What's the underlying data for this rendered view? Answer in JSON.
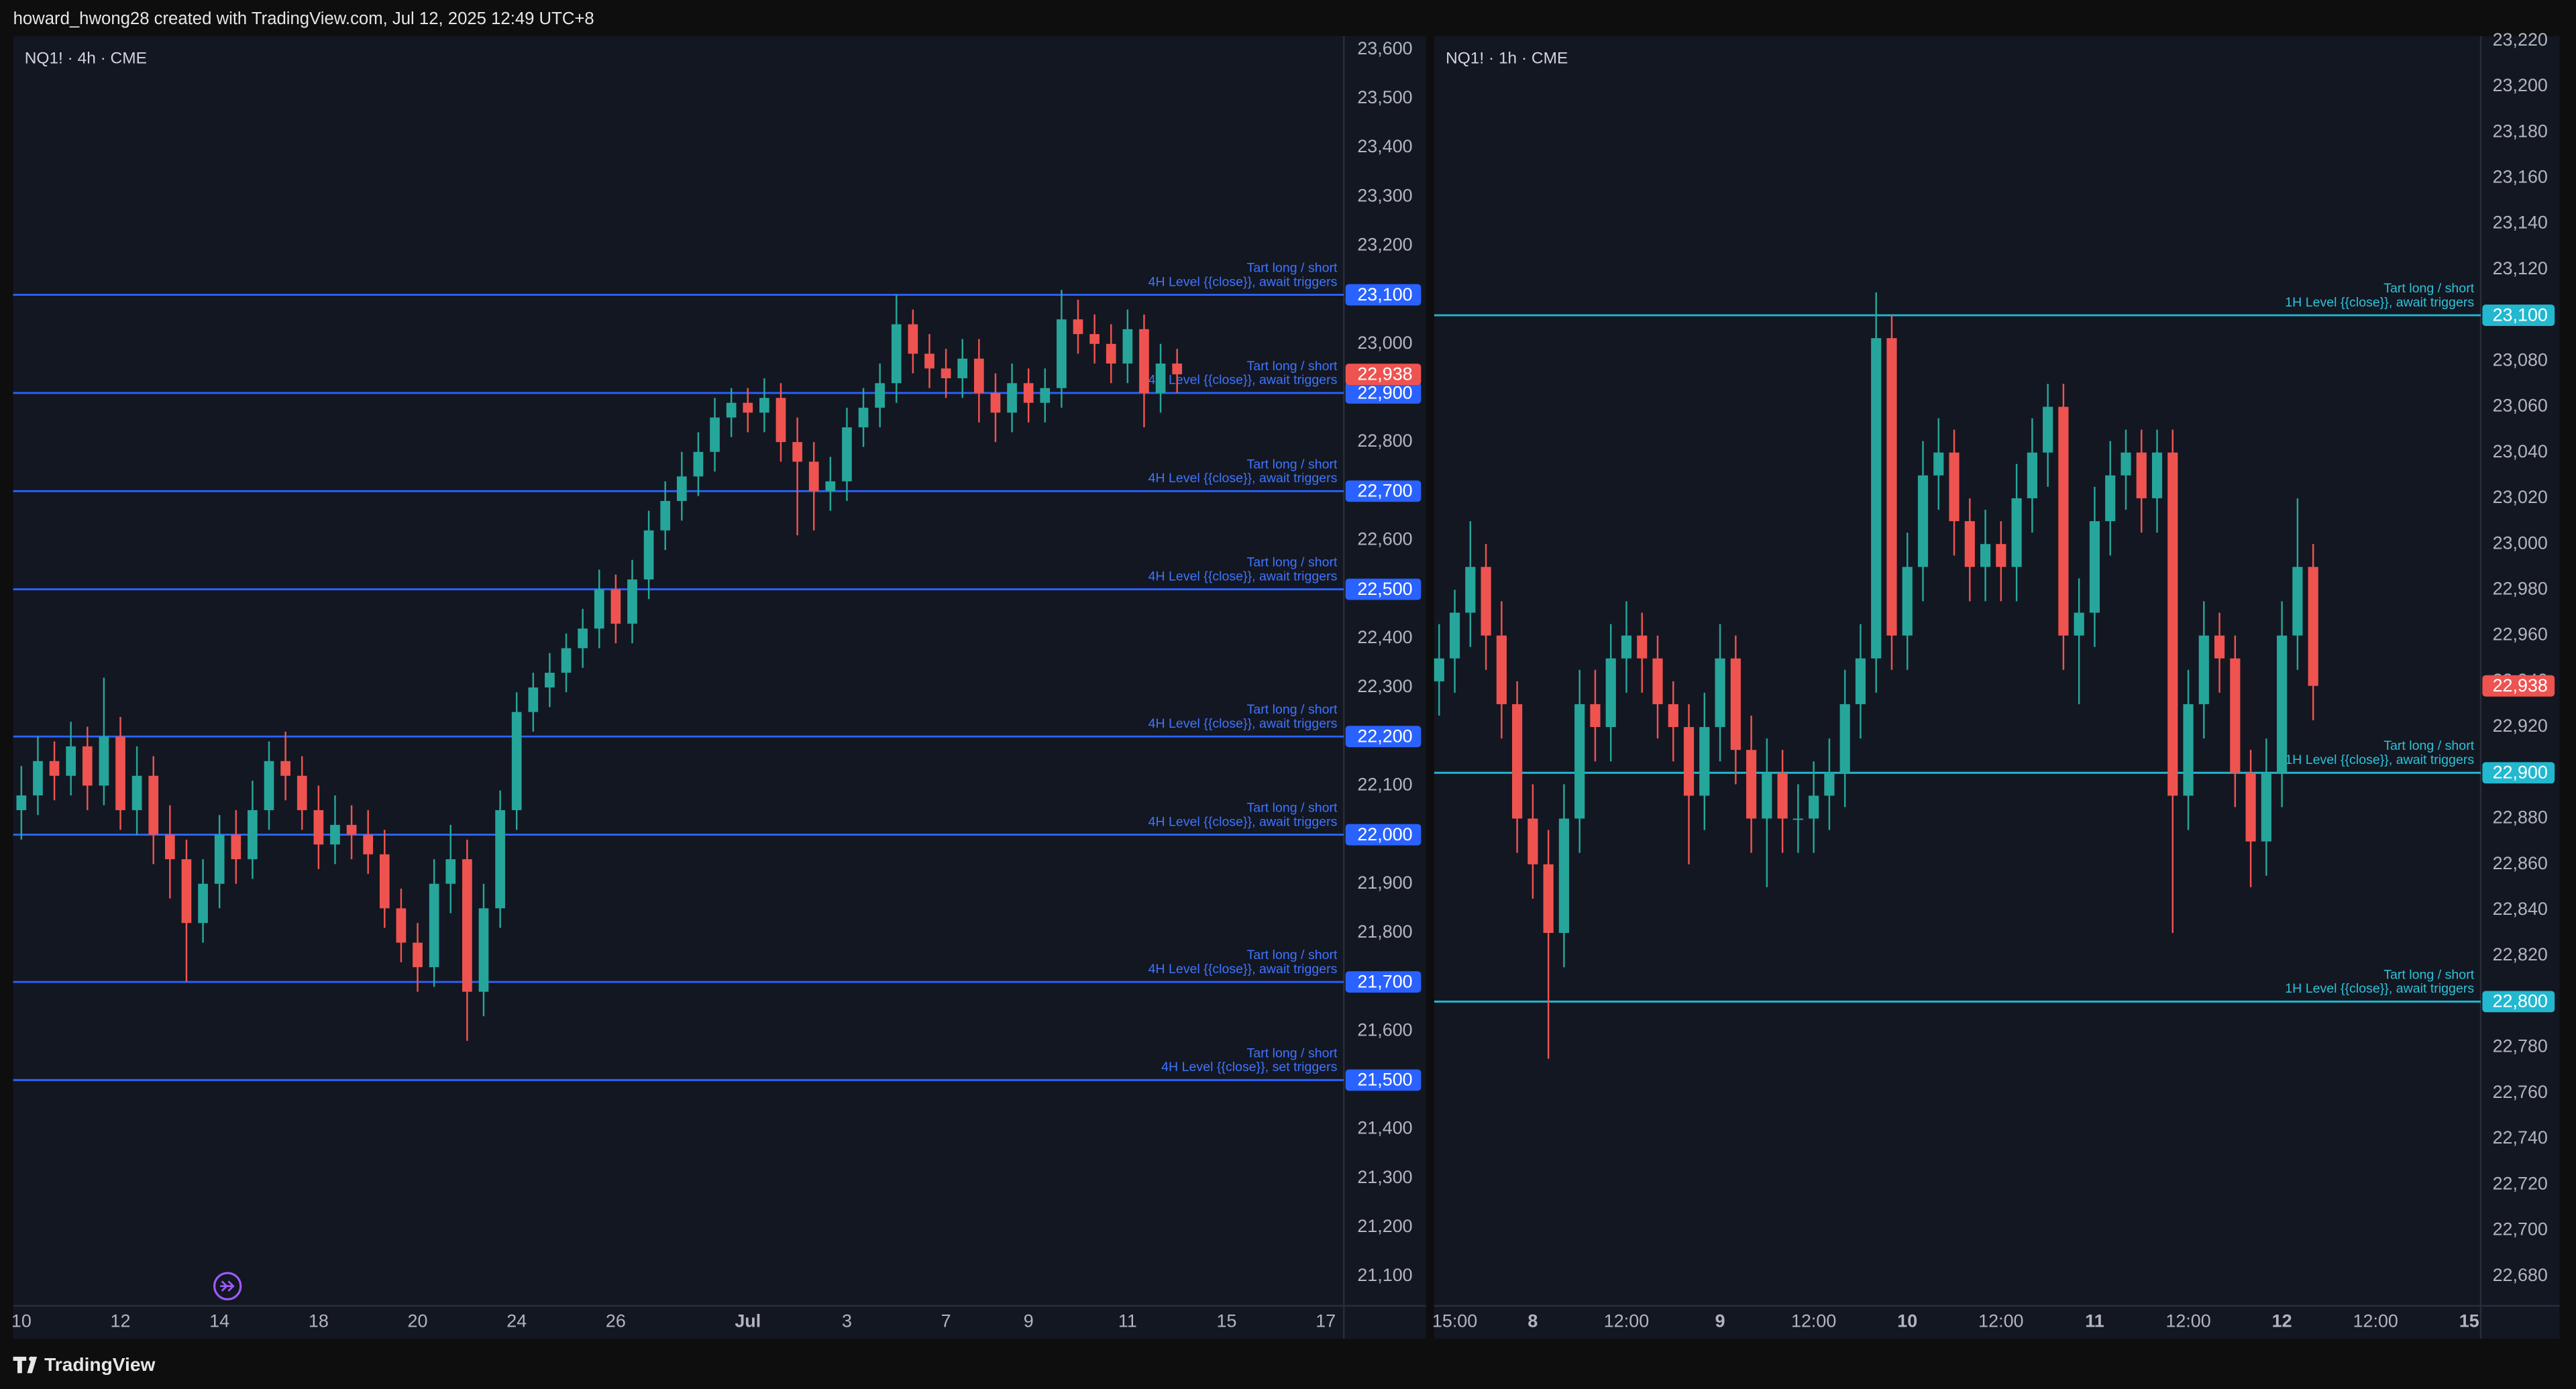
{
  "header": {
    "text": "howard_hwong28 created with TradingView.com, Jul 12, 2025 12:49 UTC+8"
  },
  "footer": {
    "brand": "TradingView"
  },
  "chart_data": [
    {
      "type": "candlestick",
      "title": "NQ1! · 4h · CME",
      "up_color": "#26a69a",
      "down_color": "#ef5350",
      "level_color": "#2962ff",
      "level_text_color": "#3f74ff",
      "ylim": [
        21040,
        23627
      ],
      "yticks": [
        {
          "value": 21100,
          "label": "21,100"
        },
        {
          "value": 21200,
          "label": "21,200"
        },
        {
          "value": 21300,
          "label": "21,300"
        },
        {
          "value": 21400,
          "label": "21,400"
        },
        {
          "value": 21500,
          "label": "21,500"
        },
        {
          "value": 21600,
          "label": "21,600"
        },
        {
          "value": 21700,
          "label": "21,700"
        },
        {
          "value": 21800,
          "label": "21,800"
        },
        {
          "value": 21900,
          "label": "21,900"
        },
        {
          "value": 22000,
          "label": "22,000"
        },
        {
          "value": 22100,
          "label": "22,100"
        },
        {
          "value": 22200,
          "label": "22,200"
        },
        {
          "value": 22300,
          "label": "22,300"
        },
        {
          "value": 22400,
          "label": "22,400"
        },
        {
          "value": 22500,
          "label": "22,500"
        },
        {
          "value": 22600,
          "label": "22,600"
        },
        {
          "value": 22700,
          "label": "22,700"
        },
        {
          "value": 22800,
          "label": "22,800"
        },
        {
          "value": 22900,
          "label": "22,900"
        },
        {
          "value": 23000,
          "label": "23,000"
        },
        {
          "value": 23100,
          "label": "23,100"
        },
        {
          "value": 23200,
          "label": "23,200"
        },
        {
          "value": 23300,
          "label": "23,300"
        },
        {
          "value": 23400,
          "label": "23,400"
        },
        {
          "value": 23500,
          "label": "23,500"
        },
        {
          "value": 23600,
          "label": "23,600"
        }
      ],
      "categories": [
        "10",
        null,
        null,
        null,
        null,
        null,
        "12",
        null,
        null,
        null,
        null,
        null,
        "14",
        null,
        null,
        null,
        null,
        null,
        "18",
        null,
        null,
        null,
        null,
        null,
        "20",
        null,
        null,
        null,
        null,
        null,
        "24",
        null,
        null,
        null,
        null,
        null,
        "26",
        null,
        null,
        null,
        null,
        null,
        null,
        null,
        "Jul",
        null,
        null,
        null,
        null,
        null,
        "3",
        null,
        null,
        null,
        null,
        null,
        "7",
        null,
        null,
        null,
        null,
        "9",
        null,
        null,
        null,
        null,
        null,
        "11",
        null,
        null,
        null,
        null,
        null,
        "15",
        null,
        null,
        null,
        null,
        null,
        "17",
        null
      ],
      "open": [
        22050,
        22080,
        22150,
        22120,
        22180,
        22100,
        22200,
        22050,
        22120,
        22000,
        21950,
        21820,
        21900,
        22000,
        21950,
        22050,
        22150,
        22120,
        22050,
        21980,
        22020,
        22000,
        21960,
        21850,
        21780,
        21730,
        21900,
        21950,
        21680,
        21850,
        22050,
        22250,
        22300,
        22330,
        22380,
        22420,
        22500,
        22430,
        22520,
        22620,
        22680,
        22730,
        22780,
        22850,
        22880,
        22860,
        22890,
        22800,
        22760,
        22700,
        22720,
        22830,
        22870,
        22920,
        23040,
        22980,
        22950,
        22930,
        22970,
        22900,
        22860,
        22920,
        22880,
        22910,
        23050,
        23020,
        23000,
        22960,
        23030,
        22900,
        22960,
        null,
        null,
        null,
        null,
        null,
        null,
        null,
        null,
        null,
        null
      ],
      "high": [
        22140,
        22200,
        22190,
        22230,
        22220,
        22320,
        22240,
        22180,
        22160,
        22060,
        21990,
        21950,
        22040,
        22050,
        22110,
        22190,
        22210,
        22160,
        22100,
        22080,
        22060,
        22050,
        22010,
        21890,
        21820,
        21950,
        22020,
        21990,
        21900,
        22090,
        22290,
        22330,
        22370,
        22410,
        22460,
        22540,
        22530,
        22560,
        22660,
        22720,
        22780,
        22820,
        22890,
        22910,
        22910,
        22930,
        22920,
        22850,
        22800,
        22770,
        22870,
        22910,
        22960,
        23100,
        23070,
        23020,
        22990,
        23010,
        23010,
        22940,
        22960,
        22950,
        22950,
        23110,
        23090,
        23060,
        23040,
        23070,
        23060,
        23000,
        22990,
        null,
        null,
        null,
        null,
        null,
        null,
        null,
        null,
        null,
        null
      ],
      "low": [
        21990,
        22040,
        22070,
        22080,
        22050,
        22060,
        22010,
        22000,
        21940,
        21870,
        21700,
        21780,
        21850,
        21900,
        21910,
        22010,
        22070,
        22010,
        21930,
        21940,
        21950,
        21920,
        21810,
        21740,
        21680,
        21690,
        21840,
        21580,
        21630,
        21810,
        22010,
        22210,
        22260,
        22290,
        22340,
        22380,
        22390,
        22390,
        22480,
        22580,
        22640,
        22690,
        22740,
        22810,
        22820,
        22820,
        22760,
        22610,
        22620,
        22660,
        22680,
        22790,
        22830,
        22880,
        22940,
        22910,
        22890,
        22890,
        22840,
        22800,
        22820,
        22840,
        22840,
        22870,
        22980,
        22960,
        22920,
        22920,
        22830,
        22860,
        22900,
        null,
        null,
        null,
        null,
        null,
        null,
        null,
        null,
        null,
        null
      ],
      "close": [
        22080,
        22150,
        22120,
        22180,
        22100,
        22200,
        22050,
        22120,
        22000,
        21950,
        21820,
        21900,
        22000,
        21950,
        22050,
        22150,
        22120,
        22050,
        21980,
        22020,
        22000,
        21960,
        21850,
        21780,
        21730,
        21900,
        21950,
        21680,
        21850,
        22050,
        22250,
        22300,
        22330,
        22380,
        22420,
        22500,
        22430,
        22520,
        22620,
        22680,
        22730,
        22780,
        22850,
        22880,
        22860,
        22890,
        22800,
        22760,
        22700,
        22720,
        22830,
        22870,
        22920,
        23040,
        22980,
        22950,
        22930,
        22970,
        22900,
        22860,
        22920,
        22880,
        22910,
        23050,
        23020,
        23000,
        22960,
        23030,
        22900,
        22960,
        22938,
        null,
        null,
        null,
        null,
        null,
        null,
        null,
        null,
        null,
        null
      ],
      "last_price": {
        "value": 22938,
        "label": "22,938"
      },
      "levels": [
        {
          "value": 23100,
          "label": "23,100",
          "lines": [
            "Tart long / short",
            "4H Level {{close}}, await triggers"
          ]
        },
        {
          "value": 22900,
          "label": "22,900",
          "lines": [
            "Tart long / short",
            "4H Level {{close}}, await triggers"
          ]
        },
        {
          "value": 22700,
          "label": "22,700",
          "lines": [
            "Tart long / short",
            "4H Level {{close}}, await triggers"
          ]
        },
        {
          "value": 22500,
          "label": "22,500",
          "lines": [
            "Tart long / short",
            "4H Level {{close}}, await triggers"
          ]
        },
        {
          "value": 22200,
          "label": "22,200",
          "lines": [
            "Tart long / short",
            "4H Level {{close}}, await triggers"
          ]
        },
        {
          "value": 22000,
          "label": "22,000",
          "lines": [
            "Tart long / short",
            "4H Level {{close}}, await triggers"
          ]
        },
        {
          "value": 21700,
          "label": "21,700",
          "lines": [
            "Tart long / short",
            "4H Level {{close}}, await triggers"
          ]
        },
        {
          "value": 21500,
          "label": "21,500",
          "lines": [
            "Tart long / short",
            "4H Level {{close}}, set triggers"
          ]
        }
      ]
    },
    {
      "type": "candlestick",
      "title": "NQ1! · 1h · CME",
      "up_color": "#26a69a",
      "down_color": "#ef5350",
      "level_color": "#22b8cf",
      "level_text_color": "#2cc3d8",
      "ylim": [
        22667,
        23222
      ],
      "yticks": [
        {
          "value": 22680,
          "label": "22,680"
        },
        {
          "value": 22700,
          "label": "22,700"
        },
        {
          "value": 22720,
          "label": "22,720"
        },
        {
          "value": 22740,
          "label": "22,740"
        },
        {
          "value": 22760,
          "label": "22,760"
        },
        {
          "value": 22780,
          "label": "22,780"
        },
        {
          "value": 22800,
          "label": "22,800"
        },
        {
          "value": 22820,
          "label": "22,820"
        },
        {
          "value": 22840,
          "label": "22,840"
        },
        {
          "value": 22860,
          "label": "22,860"
        },
        {
          "value": 22880,
          "label": "22,880"
        },
        {
          "value": 22900,
          "label": "22,900"
        },
        {
          "value": 22920,
          "label": "22,920"
        },
        {
          "value": 22940,
          "label": "22,940"
        },
        {
          "value": 22960,
          "label": "22,960"
        },
        {
          "value": 22980,
          "label": "22,980"
        },
        {
          "value": 23000,
          "label": "23,000"
        },
        {
          "value": 23020,
          "label": "23,020"
        },
        {
          "value": 23040,
          "label": "23,040"
        },
        {
          "value": 23060,
          "label": "23,060"
        },
        {
          "value": 23080,
          "label": "23,080"
        },
        {
          "value": 23100,
          "label": "23,100"
        },
        {
          "value": 23120,
          "label": "23,120"
        },
        {
          "value": 23140,
          "label": "23,140"
        },
        {
          "value": 23160,
          "label": "23,160"
        },
        {
          "value": 23180,
          "label": "23,180"
        },
        {
          "value": 23200,
          "label": "23,200"
        },
        {
          "value": 23220,
          "label": "23,220"
        }
      ],
      "categories": [
        null,
        "15:00",
        null,
        null,
        null,
        null,
        "8",
        null,
        null,
        null,
        null,
        null,
        "12:00",
        null,
        null,
        null,
        null,
        null,
        "9",
        null,
        null,
        null,
        null,
        null,
        "12:00",
        null,
        null,
        null,
        null,
        null,
        "10",
        null,
        null,
        null,
        null,
        null,
        "12:00",
        null,
        null,
        null,
        null,
        null,
        "11",
        null,
        null,
        null,
        null,
        null,
        "12:00",
        null,
        null,
        null,
        null,
        null,
        "12",
        null,
        null,
        null,
        null,
        null,
        "12:00",
        null,
        null,
        null,
        null,
        null,
        "15",
        null
      ],
      "open": [
        22940,
        22950,
        22970,
        22990,
        22960,
        22930,
        22880,
        22860,
        22830,
        22880,
        22930,
        22920,
        22950,
        22960,
        22950,
        22930,
        22920,
        22890,
        22920,
        22950,
        22910,
        22880,
        22900,
        22880,
        22880,
        22890,
        22900,
        22930,
        22950,
        23090,
        22960,
        22990,
        23030,
        23040,
        23010,
        22990,
        23000,
        22990,
        23020,
        23040,
        23060,
        22960,
        22970,
        23010,
        23030,
        23040,
        23020,
        23040,
        22890,
        22930,
        22960,
        22950,
        22900,
        22870,
        22900,
        22960,
        22990,
        null,
        null,
        null,
        null,
        null,
        null,
        null,
        null,
        null,
        null,
        null
      ],
      "high": [
        22965,
        22980,
        23010,
        23000,
        22975,
        22940,
        22895,
        22875,
        22895,
        22945,
        22945,
        22965,
        22975,
        22970,
        22960,
        22940,
        22930,
        22935,
        22965,
        22960,
        22925,
        22915,
        22910,
        22895,
        22905,
        22915,
        22945,
        22965,
        23110,
        23100,
        23005,
        23045,
        23055,
        23050,
        23020,
        23015,
        23010,
        23035,
        23055,
        23070,
        23070,
        22985,
        23025,
        23045,
        23050,
        23050,
        23050,
        23050,
        22945,
        22975,
        22970,
        22960,
        22910,
        22915,
        22975,
        23020,
        23000,
        null,
        null,
        null,
        null,
        null,
        null,
        null,
        null,
        null,
        null,
        null
      ],
      "low": [
        22925,
        22935,
        22955,
        22945,
        22915,
        22865,
        22845,
        22775,
        22815,
        22865,
        22905,
        22905,
        22935,
        22935,
        22915,
        22905,
        22860,
        22875,
        22905,
        22895,
        22865,
        22850,
        22865,
        22865,
        22865,
        22875,
        22885,
        22915,
        22935,
        22945,
        22945,
        22975,
        23015,
        22995,
        22975,
        22975,
        22975,
        22975,
        23005,
        23025,
        22945,
        22930,
        22955,
        22995,
        23015,
        23005,
        23005,
        22830,
        22875,
        22915,
        22935,
        22885,
        22850,
        22855,
        22885,
        22945,
        22923,
        null,
        null,
        null,
        null,
        null,
        null,
        null,
        null,
        null,
        null,
        null
      ],
      "close": [
        22950,
        22970,
        22990,
        22960,
        22930,
        22880,
        22860,
        22830,
        22880,
        22930,
        22920,
        22950,
        22960,
        22950,
        22930,
        22920,
        22890,
        22920,
        22950,
        22910,
        22880,
        22900,
        22880,
        22880,
        22890,
        22900,
        22930,
        22950,
        23090,
        22960,
        22990,
        23030,
        23040,
        23010,
        22990,
        23000,
        22990,
        23020,
        23040,
        23060,
        22960,
        22970,
        23010,
        23030,
        23040,
        23020,
        23040,
        22890,
        22930,
        22960,
        22950,
        22900,
        22870,
        22900,
        22960,
        22990,
        22938,
        null,
        null,
        null,
        null,
        null,
        null,
        null,
        null,
        null,
        null,
        null
      ],
      "last_price": {
        "value": 22938,
        "label": "22,938"
      },
      "levels": [
        {
          "value": 23100,
          "label": "23,100",
          "lines": [
            "Tart long / short",
            "1H Level {{close}}, await triggers"
          ]
        },
        {
          "value": 22900,
          "label": "22,900",
          "lines": [
            "Tart long / short",
            "1H Level {{close}}, await triggers"
          ]
        },
        {
          "value": 22800,
          "label": "22,800",
          "lines": [
            "Tart long / short",
            "1H Level {{close}}, await triggers"
          ]
        }
      ]
    }
  ]
}
